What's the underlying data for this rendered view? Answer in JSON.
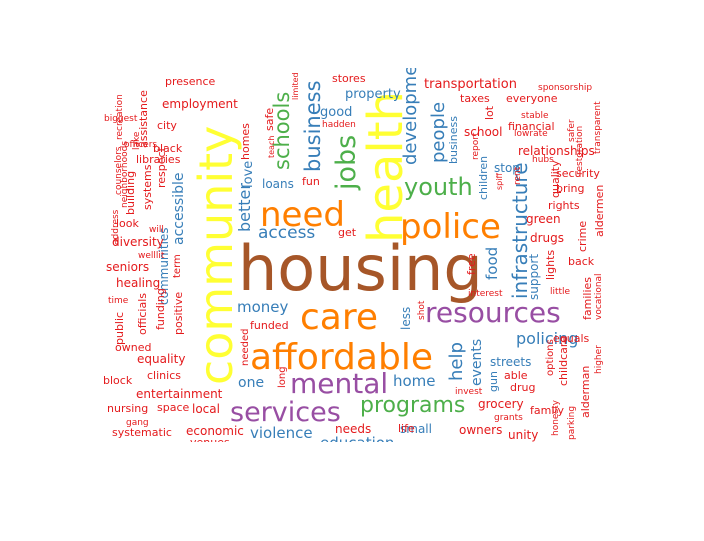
{
  "palette": {
    "brown": "#a65628",
    "yellow": "#ffff33",
    "orange": "#ff7f00",
    "purple": "#984ea3",
    "green": "#4daf4a",
    "blue": "#377eb8",
    "red": "#e41a1c"
  },
  "words": [
    {
      "text": "housing",
      "color": "brown"
    },
    {
      "text": "community",
      "color": "yellow"
    },
    {
      "text": "health",
      "color": "yellow"
    },
    {
      "text": "affordable",
      "color": "orange"
    },
    {
      "text": "need",
      "color": "orange"
    },
    {
      "text": "police",
      "color": "orange"
    },
    {
      "text": "care",
      "color": "orange"
    },
    {
      "text": "resources",
      "color": "purple"
    },
    {
      "text": "mental",
      "color": "purple"
    },
    {
      "text": "services",
      "color": "purple"
    },
    {
      "text": "jobs",
      "color": "green"
    },
    {
      "text": "youth",
      "color": "green"
    },
    {
      "text": "programs",
      "color": "green"
    },
    {
      "text": "schools",
      "color": "green"
    },
    {
      "text": "business",
      "color": "blue"
    },
    {
      "text": "infrastructure",
      "color": "blue"
    },
    {
      "text": "development",
      "color": "blue"
    },
    {
      "text": "people",
      "color": "blue"
    },
    {
      "text": "help",
      "color": "blue"
    },
    {
      "text": "access",
      "color": "blue"
    },
    {
      "text": "better",
      "color": "blue"
    },
    {
      "text": "policing",
      "color": "blue"
    },
    {
      "text": "money",
      "color": "blue"
    },
    {
      "text": "home",
      "color": "blue"
    },
    {
      "text": "violence",
      "color": "blue"
    },
    {
      "text": "education",
      "color": "blue"
    },
    {
      "text": "one",
      "color": "blue"
    },
    {
      "text": "food",
      "color": "blue"
    },
    {
      "text": "events",
      "color": "blue"
    },
    {
      "text": "accessible",
      "color": "blue"
    },
    {
      "text": "communities",
      "color": "blue"
    },
    {
      "text": "support",
      "color": "blue"
    },
    {
      "text": "love",
      "color": "blue"
    },
    {
      "text": "loans",
      "color": "blue"
    },
    {
      "text": "property",
      "color": "blue"
    },
    {
      "text": "good",
      "color": "blue"
    },
    {
      "text": "relationships",
      "color": "red"
    },
    {
      "text": "transportation",
      "color": "red"
    },
    {
      "text": "small",
      "color": "blue"
    },
    {
      "text": "streets",
      "color": "blue"
    },
    {
      "text": "stop",
      "color": "blue"
    },
    {
      "text": "homes",
      "color": "red"
    },
    {
      "text": "school",
      "color": "red"
    },
    {
      "text": "business",
      "color": "blue"
    },
    {
      "text": "children",
      "color": "blue"
    },
    {
      "text": "gun",
      "color": "blue"
    },
    {
      "text": "less",
      "color": "blue"
    },
    {
      "text": "funded",
      "color": "red"
    },
    {
      "text": "drugs",
      "color": "red"
    },
    {
      "text": "green",
      "color": "red"
    },
    {
      "text": "grocery",
      "color": "red"
    },
    {
      "text": "diversity",
      "color": "red"
    },
    {
      "text": "healing",
      "color": "red"
    },
    {
      "text": "seniors",
      "color": "red"
    },
    {
      "text": "equality",
      "color": "red"
    },
    {
      "text": "entertainment",
      "color": "red"
    },
    {
      "text": "economic",
      "color": "red"
    },
    {
      "text": "nursing",
      "color": "red"
    },
    {
      "text": "systematic",
      "color": "red"
    },
    {
      "text": "space",
      "color": "red"
    },
    {
      "text": "local",
      "color": "red"
    },
    {
      "text": "clinics",
      "color": "red"
    },
    {
      "text": "employment",
      "color": "red"
    },
    {
      "text": "presence",
      "color": "red"
    },
    {
      "text": "stores",
      "color": "red"
    },
    {
      "text": "taxes",
      "color": "red"
    },
    {
      "text": "everyone",
      "color": "red"
    },
    {
      "text": "financial",
      "color": "red"
    },
    {
      "text": "quality",
      "color": "red"
    },
    {
      "text": "security",
      "color": "red"
    },
    {
      "text": "bring",
      "color": "red"
    },
    {
      "text": "rights",
      "color": "red"
    },
    {
      "text": "aldermen",
      "color": "red"
    },
    {
      "text": "crime",
      "color": "red"
    },
    {
      "text": "back",
      "color": "red"
    },
    {
      "text": "families",
      "color": "red"
    },
    {
      "text": "equals",
      "color": "red"
    },
    {
      "text": "childcare",
      "color": "red"
    },
    {
      "text": "options",
      "color": "red"
    },
    {
      "text": "alderman",
      "color": "red"
    },
    {
      "text": "family",
      "color": "red"
    },
    {
      "text": "owners",
      "color": "red"
    },
    {
      "text": "unity",
      "color": "red"
    },
    {
      "text": "drug",
      "color": "red"
    },
    {
      "text": "able",
      "color": "red"
    },
    {
      "text": "needs",
      "color": "red"
    },
    {
      "text": "life",
      "color": "red"
    },
    {
      "text": "free",
      "color": "red"
    },
    {
      "text": "lights",
      "color": "red"
    },
    {
      "text": "lot",
      "color": "red"
    },
    {
      "text": "get",
      "color": "red"
    },
    {
      "text": "fun",
      "color": "red"
    },
    {
      "text": "safe",
      "color": "red"
    },
    {
      "text": "city",
      "color": "red"
    },
    {
      "text": "black",
      "color": "red"
    },
    {
      "text": "libraries",
      "color": "red"
    },
    {
      "text": "respect",
      "color": "red"
    },
    {
      "text": "systems",
      "color": "red"
    },
    {
      "text": "building",
      "color": "red"
    },
    {
      "text": "assistance",
      "color": "red"
    },
    {
      "text": "look",
      "color": "red"
    },
    {
      "text": "term",
      "color": "red"
    },
    {
      "text": "funding",
      "color": "red"
    },
    {
      "text": "positive",
      "color": "red"
    },
    {
      "text": "public",
      "color": "red"
    },
    {
      "text": "officials",
      "color": "red"
    },
    {
      "text": "owned",
      "color": "red"
    },
    {
      "text": "block",
      "color": "red"
    },
    {
      "text": "needed",
      "color": "red"
    },
    {
      "text": "long",
      "color": "red"
    },
    {
      "text": "venues",
      "color": "red"
    },
    {
      "text": "higher",
      "color": "red"
    },
    {
      "text": "vocational",
      "color": "red"
    },
    {
      "text": "little",
      "color": "red"
    },
    {
      "text": "interest",
      "color": "red"
    },
    {
      "text": "invest",
      "color": "red"
    },
    {
      "text": "grants",
      "color": "red"
    },
    {
      "text": "shot",
      "color": "red"
    },
    {
      "text": "sponsorship",
      "color": "red"
    },
    {
      "text": "stable",
      "color": "red"
    },
    {
      "text": "lowrate",
      "color": "red"
    },
    {
      "text": "safer",
      "color": "red"
    },
    {
      "text": "restoration",
      "color": "red"
    },
    {
      "text": "transparent",
      "color": "red"
    },
    {
      "text": "hubs",
      "color": "red"
    },
    {
      "text": "spiff",
      "color": "red"
    },
    {
      "text": "rent",
      "color": "red"
    },
    {
      "text": "report",
      "color": "red"
    },
    {
      "text": "hadden",
      "color": "red"
    },
    {
      "text": "limited",
      "color": "red"
    },
    {
      "text": "teach",
      "color": "red"
    },
    {
      "text": "biggest",
      "color": "red"
    },
    {
      "text": "recreation",
      "color": "red"
    },
    {
      "text": "officers",
      "color": "red"
    },
    {
      "text": "lake",
      "color": "red"
    },
    {
      "text": "counselors",
      "color": "red"
    },
    {
      "text": "neighborhoods",
      "color": "red"
    },
    {
      "text": "address",
      "color": "red"
    },
    {
      "text": "will",
      "color": "red"
    },
    {
      "text": "welllit",
      "color": "red"
    },
    {
      "text": "time",
      "color": "red"
    },
    {
      "text": "gang",
      "color": "red"
    },
    {
      "text": "honesty",
      "color": "red"
    },
    {
      "text": "parking",
      "color": "red"
    }
  ]
}
